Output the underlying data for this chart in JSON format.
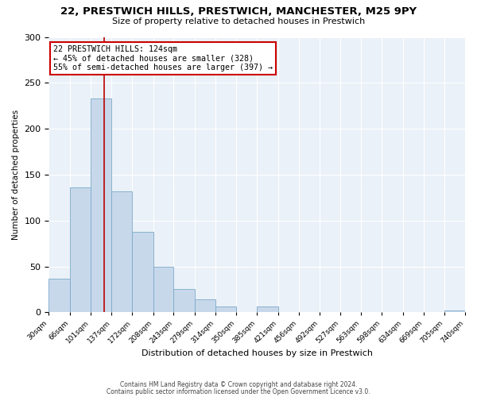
{
  "title": "22, PRESTWICH HILLS, PRESTWICH, MANCHESTER, M25 9PY",
  "subtitle": "Size of property relative to detached houses in Prestwich",
  "xlabel": "Distribution of detached houses by size in Prestwich",
  "ylabel": "Number of detached properties",
  "bar_color": "#c8d8eb",
  "bar_edge_color": "#7aaac8",
  "background_color": "#eaf1f8",
  "grid_color": "#ffffff",
  "vline_value": 124,
  "vline_color": "#bb0000",
  "bin_edges": [
    30,
    66,
    101,
    137,
    172,
    208,
    243,
    279,
    314,
    350,
    385,
    421,
    456,
    492,
    527,
    563,
    598,
    634,
    669,
    705,
    740
  ],
  "bar_heights": [
    37,
    136,
    233,
    132,
    88,
    50,
    25,
    14,
    6,
    0,
    6,
    0,
    0,
    0,
    0,
    0,
    0,
    0,
    0,
    2
  ],
  "ylim": [
    0,
    300
  ],
  "yticks": [
    0,
    50,
    100,
    150,
    200,
    250,
    300
  ],
  "annotation_line1": "22 PRESTWICH HILLS: 124sqm",
  "annotation_line2": "← 45% of detached houses are smaller (328)",
  "annotation_line3": "55% of semi-detached houses are larger (397) →",
  "annotation_box_color": "#ffffff",
  "annotation_border_color": "#cc0000",
  "footer_line1": "Contains HM Land Registry data © Crown copyright and database right 2024.",
  "footer_line2": "Contains public sector information licensed under the Open Government Licence v3.0."
}
